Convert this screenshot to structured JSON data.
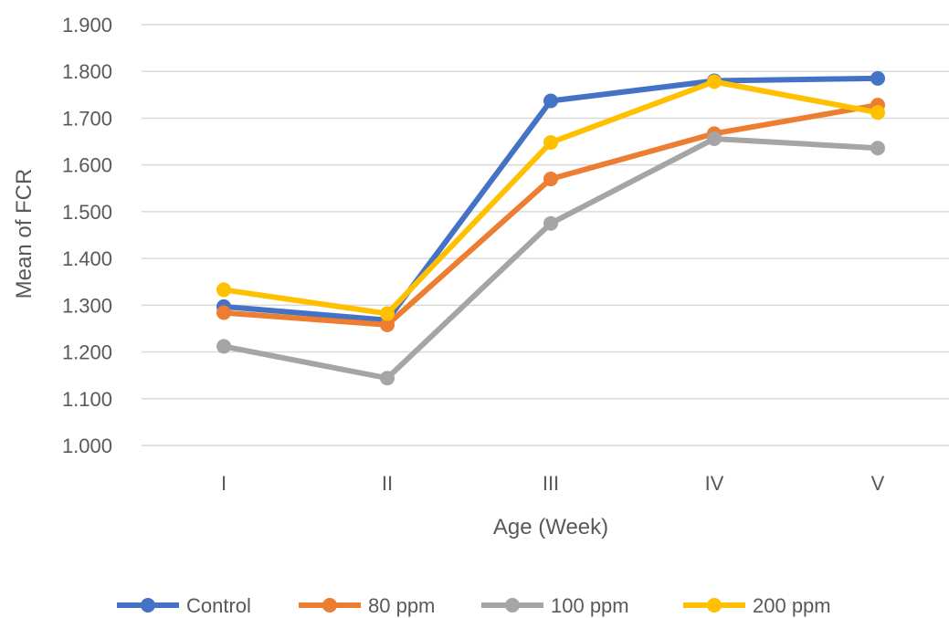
{
  "chart_data": {
    "type": "line",
    "title": "",
    "xlabel": "Age (Week)",
    "ylabel": "Mean of FCR",
    "categories": [
      "I",
      "II",
      "III",
      "IV",
      "V"
    ],
    "ylim": [
      1.0,
      1.9
    ],
    "yticks": [
      "1.000",
      "1.100",
      "1.200",
      "1.300",
      "1.400",
      "1.500",
      "1.600",
      "1.700",
      "1.800",
      "1.900"
    ],
    "grid": true,
    "legend_position": "bottom",
    "series": [
      {
        "name": "Control",
        "color": "#4472C4",
        "values": [
          1.297,
          1.268,
          1.737,
          1.78,
          1.785
        ]
      },
      {
        "name": "80 ppm",
        "color": "#ED7D31",
        "values": [
          1.284,
          1.258,
          1.57,
          1.667,
          1.728
        ]
      },
      {
        "name": "100 ppm",
        "color": "#A5A5A5",
        "values": [
          1.212,
          1.144,
          1.475,
          1.656,
          1.636
        ]
      },
      {
        "name": "200 ppm",
        "color": "#FFC000",
        "values": [
          1.333,
          1.282,
          1.648,
          1.778,
          1.712
        ]
      }
    ]
  }
}
